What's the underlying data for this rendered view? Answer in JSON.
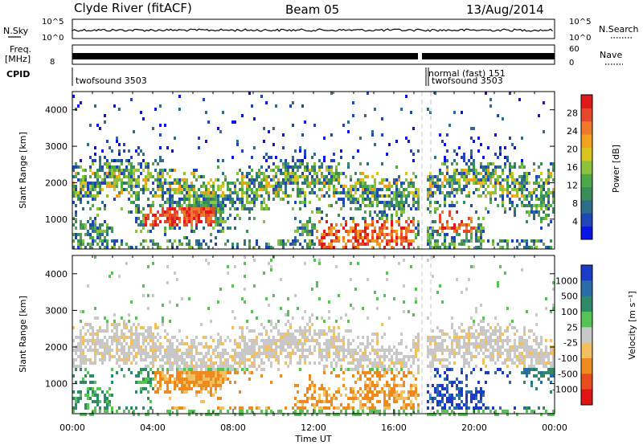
{
  "header": {
    "station": "Clyde River (fitACF)",
    "beam": "Beam 05",
    "date": "13/Aug/2014"
  },
  "strip_labels": {
    "nsky": "N.Sky",
    "nsearch": "N.Search",
    "freq": "Freq.",
    "mhz": "[MHz]",
    "nave": "Nave",
    "cpid": "CPID",
    "sky_top": "10^5",
    "sky_bottom": "10^0",
    "search_top": "10^5",
    "search_bottom": "10^0",
    "freq_tick": "8",
    "nave_top": "60",
    "nave_bottom": "0"
  },
  "cpid_labels": [
    "twofsound 3503",
    "normal (fast) 151",
    "twofsound 3503"
  ],
  "chart_data": [
    {
      "type": "heatmap",
      "name": "power",
      "ylabel": "Slant Range [km]",
      "y_ticks": [
        "1000",
        "2000",
        "3000",
        "4000"
      ],
      "ylim": [
        180,
        4500
      ],
      "xlim": [
        0,
        24
      ],
      "colorbar": {
        "label": "Power [dB]",
        "ticks": [
          "4",
          "8",
          "12",
          "16",
          "20",
          "24",
          "28"
        ],
        "colors": [
          "#0a14e6",
          "#1e46b4",
          "#2f6e8a",
          "#3a8c5a",
          "#4ca84a",
          "#8cc23c",
          "#d9c420",
          "#f2a020",
          "#f0782a",
          "#e6462a",
          "#e01818"
        ]
      },
      "data_gap_hours": [
        17.2,
        17.6
      ]
    },
    {
      "type": "heatmap",
      "name": "velocity",
      "ylabel": "Slant Range [km]",
      "xlabel": "Time UT",
      "x_ticks": [
        "00:00",
        "04:00",
        "08:00",
        "12:00",
        "16:00",
        "20:00",
        "00:00"
      ],
      "y_ticks": [
        "1000",
        "2000",
        "3000",
        "4000"
      ],
      "ylim": [
        180,
        4500
      ],
      "xlim": [
        0,
        24
      ],
      "colorbar": {
        "label": "Velocity [m s⁻¹]",
        "ticks": [
          "1000",
          "500",
          "100",
          "25",
          "-25",
          "-100",
          "-500",
          "-1000"
        ],
        "colors": [
          "#1a3cc8",
          "#2a6ca8",
          "#2f8a6a",
          "#55c455",
          "#c8c8c8",
          "#f2c060",
          "#ee8a1e",
          "#e84c1c",
          "#e01414"
        ]
      },
      "data_gap_hours": [
        17.2,
        17.6
      ]
    }
  ]
}
